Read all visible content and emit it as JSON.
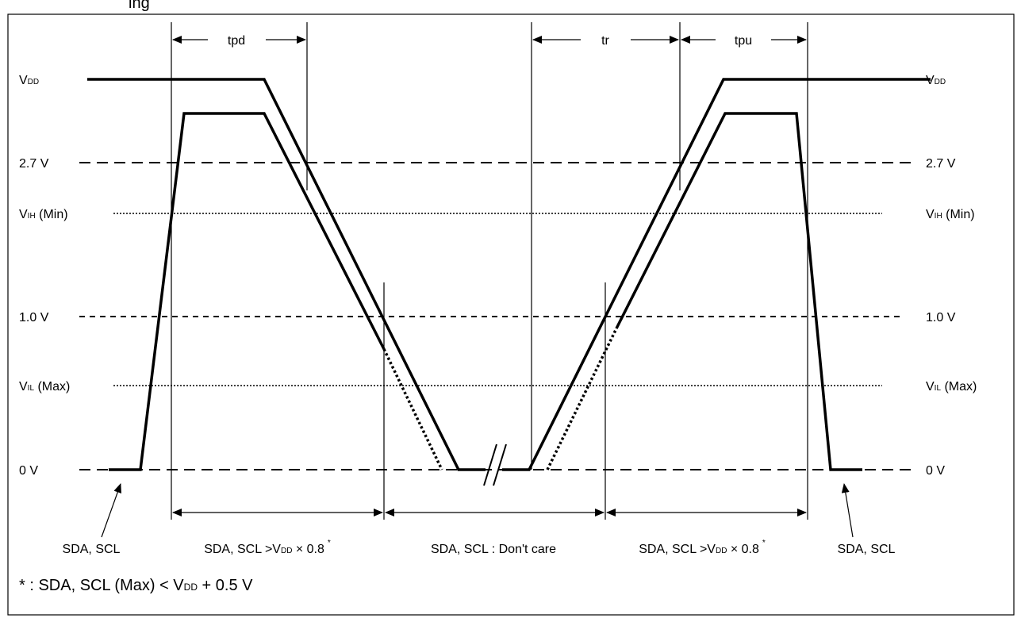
{
  "figure_title": "ing",
  "levels": {
    "vdd": {
      "main": "V",
      "sub": "DD"
    },
    "v27": "2.7 V",
    "vih": {
      "main": "V",
      "sub": "IH",
      "suffix": " (Min)"
    },
    "v10": "1.0 V",
    "vil": {
      "main": "V",
      "sub": "IL",
      "suffix": " (Max)"
    },
    "v0": "0 V"
  },
  "timing": {
    "tpd": "tpd",
    "tr": "tr",
    "tpu": "tpu"
  },
  "regions": {
    "pins_left": "SDA, SCL",
    "pins_right": "SDA, SCL",
    "high_prefix": "SDA, SCL >V",
    "high_sub": "DD",
    "high_suffix": " × 0.8",
    "high_mark": "*",
    "dont_care": "SDA, SCL : Don't care"
  },
  "footnote": {
    "prefix": "* : SDA, SCL (Max) < V",
    "sub": "DD",
    "suffix": " + 0.5 V"
  },
  "colors": {
    "line": "#000000",
    "background": "#ffffff"
  }
}
